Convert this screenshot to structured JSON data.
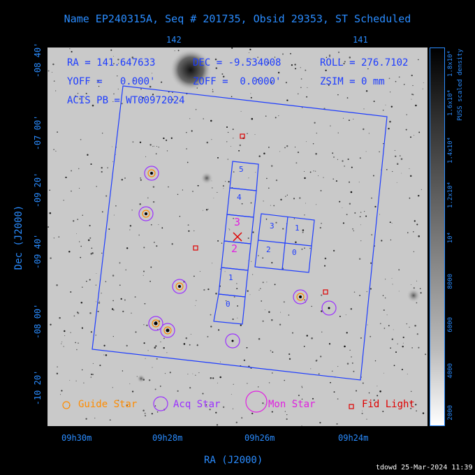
{
  "title": "Name EP240315A, Seq # 201735, Obsid 29353, ST Scheduled",
  "top_ticks": [
    "142",
    "141"
  ],
  "info": {
    "ra": "RA = 141.647633",
    "dec": "DEC = -9.534008",
    "roll": "ROLL = 276.7102",
    "yoff": "YOFF =   0.000'",
    "zoff": "ZOFF =  0.0000'",
    "zsim": "ZSIM = 0 mm",
    "acis": "ACIS PB = WT00972024"
  },
  "dec_ticks": [
    "-08 40'",
    "-07 00'",
    "-09 20'",
    "-09 40'",
    "-08 00'",
    "-10 20'"
  ],
  "dec_axis_label": "Dec (J2000)",
  "ra_ticks": [
    "09h30m",
    "09h28m",
    "09h26m",
    "09h24m"
  ],
  "ra_axis_label": "RA (J2000)",
  "chip_labels": {
    "strip": [
      "5",
      "4",
      "3",
      "2",
      "1",
      "0"
    ],
    "block": [
      "3",
      "1",
      "2",
      "0"
    ]
  },
  "legend": {
    "guide": "Guide Star",
    "acq": "Acq Star",
    "mon": "Mon Star",
    "fid": "Fid Light"
  },
  "colorbar": {
    "label": "PUSS scaled density",
    "ticks": [
      "2000",
      "4000",
      "6000",
      "8000",
      "10⁴",
      "1.2x10⁴",
      "1.4x10⁴",
      "1.6x10⁴",
      "1.8x10⁴"
    ]
  },
  "colors": {
    "guide": "#ff8c00",
    "acq": "#9b30ff",
    "mon": "#e020e0",
    "fid": "#e00000",
    "overlay": "#1d3cff"
  },
  "footer": "tdowd 25-Mar-2024 11:39"
}
